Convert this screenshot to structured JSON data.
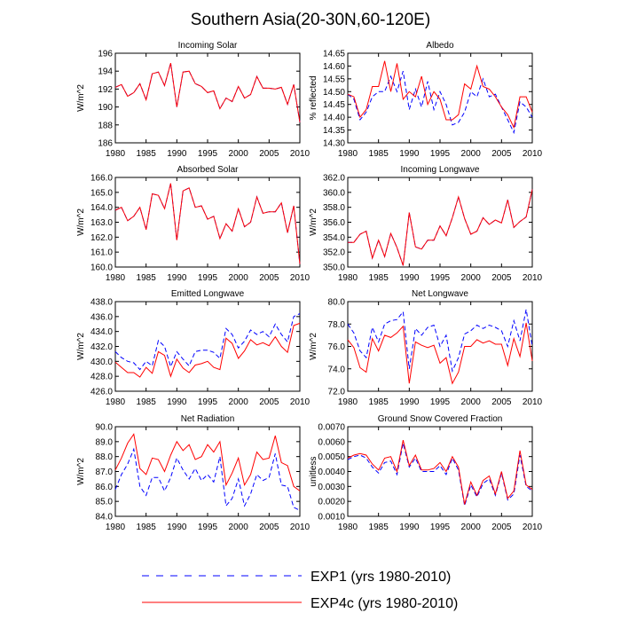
{
  "title": "Southern Asia(20-30N,60-120E)",
  "legend": [
    {
      "label": "EXP1 (yrs 1980-2010)",
      "color": "#0000ff",
      "dash": true
    },
    {
      "label": "EXP4c (yrs 1980-2010)",
      "color": "#ff0000",
      "dash": false
    }
  ],
  "chart_data": [
    {
      "type": "line",
      "title": "Incoming Solar",
      "ylabel": "W/m^2",
      "xlim": [
        1980,
        2010
      ],
      "xticks": [
        "1980",
        "1985",
        "1990",
        "1995",
        "2000",
        "2005",
        "2010"
      ],
      "ylim": [
        186,
        196
      ],
      "yticks": [
        "186",
        "188",
        "190",
        "192",
        "194",
        "196"
      ],
      "x": [
        1980,
        1981,
        1982,
        1983,
        1984,
        1985,
        1986,
        1987,
        1988,
        1989,
        1990,
        1991,
        1992,
        1993,
        1994,
        1995,
        1996,
        1997,
        1998,
        1999,
        2000,
        2001,
        2002,
        2003,
        2004,
        2005,
        2006,
        2007,
        2008,
        2009,
        2010
      ],
      "series": [
        {
          "name": "EXP1",
          "color": "#0000ff",
          "dash": true,
          "values": [
            192.2,
            192.5,
            191.2,
            191.6,
            192.6,
            190.8,
            193.7,
            193.9,
            192.4,
            194.9,
            190.0,
            193.9,
            194.0,
            192.6,
            192.3,
            191.6,
            191.8,
            189.8,
            191.0,
            190.6,
            192.3,
            191.0,
            191.4,
            193.4,
            192.1,
            192.1,
            192.0,
            192.2,
            190.3,
            192.5,
            188.3
          ]
        },
        {
          "name": "EXP4c",
          "color": "#ff0000",
          "dash": false,
          "values": [
            192.2,
            192.5,
            191.2,
            191.6,
            192.6,
            190.8,
            193.7,
            193.9,
            192.4,
            194.9,
            190.0,
            193.9,
            194.0,
            192.6,
            192.3,
            191.6,
            191.8,
            189.8,
            191.0,
            190.6,
            192.3,
            191.0,
            191.4,
            193.4,
            192.1,
            192.1,
            192.0,
            192.2,
            190.3,
            192.5,
            188.3
          ]
        }
      ]
    },
    {
      "type": "line",
      "title": "Albedo",
      "ylabel": "% reflected",
      "xlim": [
        1980,
        2010
      ],
      "xticks": [
        "1980",
        "1985",
        "1990",
        "1995",
        "2000",
        "2005",
        "2010"
      ],
      "ylim": [
        14.3,
        14.65
      ],
      "yticks": [
        "14.30",
        "14.35",
        "14.40",
        "14.45",
        "14.50",
        "14.55",
        "14.60",
        "14.65"
      ],
      "x": [
        1980,
        1981,
        1982,
        1983,
        1984,
        1985,
        1986,
        1987,
        1988,
        1989,
        1990,
        1991,
        1992,
        1993,
        1994,
        1995,
        1996,
        1997,
        1998,
        1999,
        2000,
        2001,
        2002,
        2003,
        2004,
        2005,
        2006,
        2007,
        2008,
        2009,
        2010
      ],
      "series": [
        {
          "name": "EXP1",
          "color": "#0000ff",
          "dash": true,
          "values": [
            14.49,
            14.47,
            14.39,
            14.42,
            14.48,
            14.5,
            14.5,
            14.56,
            14.5,
            14.58,
            14.43,
            14.51,
            14.44,
            14.54,
            14.43,
            14.5,
            14.45,
            14.37,
            14.38,
            14.42,
            14.5,
            14.48,
            14.55,
            14.48,
            14.49,
            14.44,
            14.39,
            14.34,
            14.46,
            14.44,
            14.4
          ]
        },
        {
          "name": "EXP4c",
          "color": "#ff0000",
          "dash": false,
          "values": [
            14.49,
            14.48,
            14.4,
            14.43,
            14.52,
            14.52,
            14.62,
            14.5,
            14.61,
            14.47,
            14.5,
            14.48,
            14.56,
            14.45,
            14.5,
            14.47,
            14.39,
            14.39,
            14.41,
            14.53,
            14.51,
            14.6,
            14.52,
            14.51,
            14.48,
            14.44,
            14.41,
            14.36,
            14.48,
            14.48,
            14.42
          ]
        }
      ]
    },
    {
      "type": "line",
      "title": "Absorbed Solar",
      "ylabel": "W/m^2",
      "xlim": [
        1980,
        2010
      ],
      "xticks": [
        "1980",
        "1985",
        "1990",
        "1995",
        "2000",
        "2005",
        "2010"
      ],
      "ylim": [
        160.0,
        166.0
      ],
      "yticks": [
        "160.0",
        "161.0",
        "162.0",
        "163.0",
        "164.0",
        "165.0",
        "166.0"
      ],
      "x": [
        1980,
        1981,
        1982,
        1983,
        1984,
        1985,
        1986,
        1987,
        1988,
        1989,
        1990,
        1991,
        1992,
        1993,
        1994,
        1995,
        1996,
        1997,
        1998,
        1999,
        2000,
        2001,
        2002,
        2003,
        2004,
        2005,
        2006,
        2007,
        2008,
        2009,
        2010
      ],
      "series": [
        {
          "name": "EXP1",
          "color": "#0000ff",
          "dash": true,
          "values": [
            163.8,
            164.0,
            163.1,
            163.4,
            164.0,
            162.5,
            164.9,
            164.8,
            163.9,
            165.6,
            161.8,
            165.1,
            165.3,
            164.0,
            164.1,
            163.2,
            163.4,
            161.9,
            162.9,
            162.4,
            163.9,
            162.7,
            163.0,
            164.7,
            163.6,
            163.7,
            163.7,
            164.3,
            162.3,
            164.1,
            160.2
          ]
        },
        {
          "name": "EXP4c",
          "color": "#ff0000",
          "dash": false,
          "values": [
            163.8,
            164.0,
            163.1,
            163.4,
            164.0,
            162.5,
            164.9,
            164.8,
            163.9,
            165.6,
            161.8,
            165.1,
            165.3,
            164.0,
            164.1,
            163.2,
            163.4,
            161.9,
            162.9,
            162.4,
            163.9,
            162.7,
            163.0,
            164.7,
            163.6,
            163.7,
            163.7,
            164.3,
            162.3,
            164.1,
            160.2
          ]
        }
      ]
    },
    {
      "type": "line",
      "title": "Incoming Longwave",
      "ylabel": "W/m^2",
      "xlim": [
        1980,
        2010
      ],
      "xticks": [
        "1980",
        "1985",
        "1990",
        "1995",
        "2000",
        "2005",
        "2010"
      ],
      "ylim": [
        350.0,
        362.0
      ],
      "yticks": [
        "350.0",
        "352.0",
        "354.0",
        "356.0",
        "358.0",
        "360.0",
        "362.0"
      ],
      "x": [
        1980,
        1981,
        1982,
        1983,
        1984,
        1985,
        1986,
        1987,
        1988,
        1989,
        1990,
        1991,
        1992,
        1993,
        1994,
        1995,
        1996,
        1997,
        1998,
        1999,
        2000,
        2001,
        2002,
        2003,
        2004,
        2005,
        2006,
        2007,
        2008,
        2009,
        2010
      ],
      "series": [
        {
          "name": "EXP1",
          "color": "#0000ff",
          "dash": true,
          "values": [
            353.3,
            353.3,
            354.4,
            354.8,
            351.2,
            353.6,
            351.4,
            354.5,
            352.6,
            350.2,
            357.3,
            352.7,
            352.4,
            353.6,
            353.6,
            355.5,
            354.2,
            356.6,
            359.4,
            356.5,
            354.4,
            354.8,
            356.6,
            355.7,
            356.3,
            355.9,
            359.0,
            355.3,
            356.1,
            356.7,
            360.4
          ]
        },
        {
          "name": "EXP4c",
          "color": "#ff0000",
          "dash": false,
          "values": [
            353.3,
            353.3,
            354.4,
            354.8,
            351.2,
            353.6,
            351.4,
            354.5,
            352.6,
            350.2,
            357.3,
            352.7,
            352.4,
            353.6,
            353.6,
            355.5,
            354.2,
            356.6,
            359.4,
            356.5,
            354.4,
            354.8,
            356.6,
            355.7,
            356.3,
            355.9,
            359.0,
            355.3,
            356.1,
            356.7,
            360.4
          ]
        }
      ]
    },
    {
      "type": "line",
      "title": "Emitted Longwave",
      "ylabel": "W/m^2",
      "xlim": [
        1980,
        2010
      ],
      "xticks": [
        "1980",
        "1985",
        "1990",
        "1995",
        "2000",
        "2005",
        "2010"
      ],
      "ylim": [
        426.0,
        438.0
      ],
      "yticks": [
        "426.0",
        "428.0",
        "430.0",
        "432.0",
        "434.0",
        "436.0",
        "438.0"
      ],
      "x": [
        1980,
        1981,
        1982,
        1983,
        1984,
        1985,
        1986,
        1987,
        1988,
        1989,
        1990,
        1991,
        1992,
        1993,
        1994,
        1995,
        1996,
        1997,
        1998,
        1999,
        2000,
        2001,
        2002,
        2003,
        2004,
        2005,
        2006,
        2007,
        2008,
        2009,
        2010
      ],
      "series": [
        {
          "name": "EXP1",
          "color": "#0000ff",
          "dash": true,
          "values": [
            431.3,
            430.5,
            430.0,
            429.8,
            428.9,
            430.0,
            429.4,
            432.8,
            432.0,
            429.3,
            431.3,
            430.3,
            429.4,
            431.3,
            431.5,
            431.5,
            431.2,
            430.4,
            434.4,
            433.6,
            431.8,
            432.7,
            434.2,
            433.6,
            434.0,
            433.3,
            435.0,
            433.6,
            432.6,
            436.0,
            436.4
          ]
        },
        {
          "name": "EXP4c",
          "color": "#ff0000",
          "dash": false,
          "values": [
            429.9,
            429.2,
            428.5,
            428.5,
            427.9,
            429.2,
            428.4,
            431.3,
            430.8,
            428.0,
            430.3,
            429.1,
            428.5,
            429.5,
            429.7,
            430.0,
            429.2,
            428.9,
            433.1,
            432.4,
            430.4,
            431.4,
            432.9,
            432.2,
            432.5,
            432.1,
            433.3,
            432.0,
            431.2,
            434.8,
            435.1
          ]
        }
      ]
    },
    {
      "type": "line",
      "title": "Net Longwave",
      "ylabel": "W/m^2",
      "xlim": [
        1980,
        2010
      ],
      "xticks": [
        "1980",
        "1985",
        "1990",
        "1995",
        "2000",
        "2005",
        "2010"
      ],
      "ylim": [
        72.0,
        80.0
      ],
      "yticks": [
        "72.0",
        "74.0",
        "76.0",
        "78.0",
        "80.0"
      ],
      "x": [
        1980,
        1981,
        1982,
        1983,
        1984,
        1985,
        1986,
        1987,
        1988,
        1989,
        1990,
        1991,
        1992,
        1993,
        1994,
        1995,
        1996,
        1997,
        1998,
        1999,
        2000,
        2001,
        2002,
        2003,
        2004,
        2005,
        2006,
        2007,
        2008,
        2009,
        2010
      ],
      "series": [
        {
          "name": "EXP1",
          "color": "#0000ff",
          "dash": true,
          "values": [
            78.0,
            77.2,
            75.6,
            75.0,
            77.7,
            76.4,
            78.0,
            78.3,
            78.4,
            79.1,
            74.0,
            77.6,
            77.0,
            77.7,
            77.9,
            76.0,
            77.0,
            73.8,
            75.0,
            77.1,
            77.4,
            77.9,
            77.6,
            77.9,
            77.7,
            77.4,
            76.0,
            78.3,
            76.5,
            79.3,
            76.0
          ]
        },
        {
          "name": "EXP4c",
          "color": "#ff0000",
          "dash": false,
          "values": [
            76.6,
            75.9,
            74.1,
            73.7,
            76.7,
            75.6,
            77.0,
            76.8,
            77.2,
            77.8,
            72.7,
            76.4,
            76.1,
            75.9,
            76.1,
            74.5,
            75.0,
            72.7,
            73.7,
            76.0,
            76.0,
            76.6,
            76.3,
            76.5,
            76.2,
            76.2,
            74.3,
            76.7,
            75.1,
            78.1,
            74.7
          ]
        }
      ]
    },
    {
      "type": "line",
      "title": "Net Radiation",
      "ylabel": "W/m^2",
      "xlim": [
        1980,
        2010
      ],
      "xticks": [
        "1980",
        "1985",
        "1990",
        "1995",
        "2000",
        "2005",
        "2010"
      ],
      "ylim": [
        84.0,
        90.0
      ],
      "yticks": [
        "84.0",
        "85.0",
        "86.0",
        "87.0",
        "88.0",
        "89.0",
        "90.0"
      ],
      "x": [
        1980,
        1981,
        1982,
        1983,
        1984,
        1985,
        1986,
        1987,
        1988,
        1989,
        1990,
        1991,
        1992,
        1993,
        1994,
        1995,
        1996,
        1997,
        1998,
        1999,
        2000,
        2001,
        2002,
        2003,
        2004,
        2005,
        2006,
        2007,
        2008,
        2009,
        2010
      ],
      "series": [
        {
          "name": "EXP1",
          "color": "#0000ff",
          "dash": true,
          "values": [
            85.8,
            86.8,
            87.5,
            88.5,
            86.0,
            85.4,
            86.6,
            86.6,
            85.7,
            86.6,
            87.9,
            87.1,
            86.5,
            87.2,
            86.4,
            86.8,
            86.3,
            88.0,
            84.7,
            85.2,
            86.5,
            84.7,
            85.5,
            86.8,
            86.4,
            86.6,
            88.2,
            86.1,
            86.0,
            84.6,
            84.4
          ]
        },
        {
          "name": "EXP4c",
          "color": "#ff0000",
          "dash": false,
          "values": [
            87.1,
            87.9,
            88.9,
            89.5,
            87.2,
            86.8,
            87.9,
            87.8,
            87.0,
            88.1,
            89.0,
            88.4,
            88.8,
            87.8,
            88.0,
            88.8,
            88.3,
            89.0,
            86.1,
            86.9,
            87.9,
            86.1,
            86.8,
            88.3,
            87.8,
            87.9,
            89.4,
            87.6,
            87.4,
            86.0,
            85.7
          ]
        }
      ]
    },
    {
      "type": "line",
      "title": "Ground Snow Covered Fraction",
      "ylabel": "unitless",
      "xlim": [
        1980,
        2010
      ],
      "xticks": [
        "1980",
        "1985",
        "1990",
        "1995",
        "2000",
        "2005",
        "2010"
      ],
      "ylim": [
        0.001,
        0.007
      ],
      "yticks": [
        "0.0010",
        "0.0020",
        "0.0030",
        "0.0040",
        "0.0050",
        "0.0060",
        "0.0070"
      ],
      "x": [
        1980,
        1981,
        1982,
        1983,
        1984,
        1985,
        1986,
        1987,
        1988,
        1989,
        1990,
        1991,
        1992,
        1993,
        1994,
        1995,
        1996,
        1997,
        1998,
        1999,
        2000,
        2001,
        2002,
        2003,
        2004,
        2005,
        2006,
        2007,
        2008,
        2009,
        2010
      ],
      "series": [
        {
          "name": "EXP1",
          "color": "#0000ff",
          "dash": true,
          "values": [
            0.0048,
            0.005,
            0.0051,
            0.0049,
            0.0043,
            0.0039,
            0.0046,
            0.0047,
            0.0038,
            0.0059,
            0.0043,
            0.0049,
            0.004,
            0.004,
            0.004,
            0.0044,
            0.0038,
            0.0049,
            0.0041,
            0.0017,
            0.0031,
            0.0023,
            0.0032,
            0.0035,
            0.0024,
            0.0039,
            0.0021,
            0.0025,
            0.0051,
            0.003,
            0.0027
          ]
        },
        {
          "name": "EXP4c",
          "color": "#ff0000",
          "dash": false,
          "values": [
            0.0049,
            0.0051,
            0.0052,
            0.0051,
            0.0045,
            0.0041,
            0.0049,
            0.005,
            0.004,
            0.0061,
            0.0044,
            0.0051,
            0.0041,
            0.0041,
            0.0042,
            0.0046,
            0.004,
            0.005,
            0.0043,
            0.0018,
            0.0033,
            0.0024,
            0.0034,
            0.0037,
            0.0025,
            0.004,
            0.0022,
            0.0027,
            0.0054,
            0.0031,
            0.0028
          ]
        }
      ]
    }
  ]
}
